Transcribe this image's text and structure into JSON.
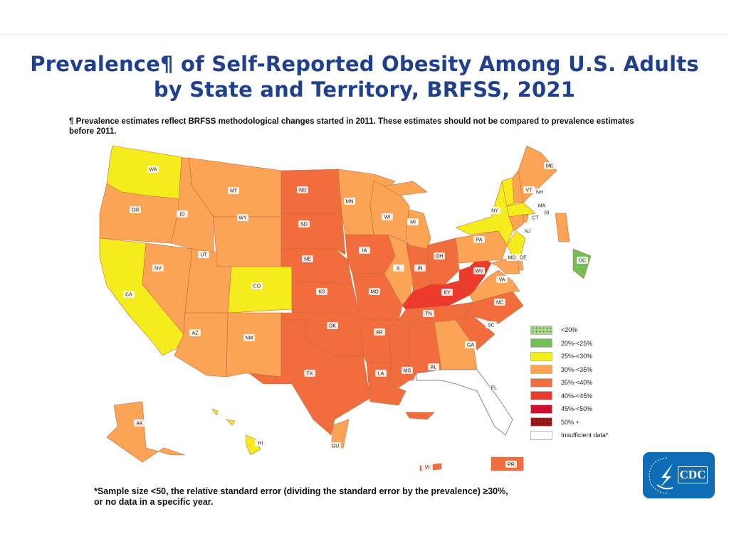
{
  "title_line1": "Prevalence¶ of Self-Reported Obesity Among U.S. Adults",
  "title_line2": "by State and Territory, BRFSS, 2021",
  "method_note": "¶ Prevalence estimates reflect BRFSS methodological changes started in 2011. These estimates should not be compared to prevalence estimates before 2011.",
  "footnote_line1": "*Sample size <50, the relative standard error (dividing the standard error by the prevalence) ≥30%,",
  "footnote_line2": "or no data in a specific year.",
  "logo_text": "CDC",
  "legend": [
    {
      "label": "<20%",
      "color": "#a8d88a",
      "pattern": "dots"
    },
    {
      "label": "20%-<25%",
      "color": "#72bf57"
    },
    {
      "label": "25%-<30%",
      "color": "#f5ec1e"
    },
    {
      "label": "30%-<35%",
      "color": "#fba456"
    },
    {
      "label": "35%-<40%",
      "color": "#f26d3d"
    },
    {
      "label": "40%-<45%",
      "color": "#ec3b2c"
    },
    {
      "label": "45%-<50%",
      "color": "#c8102e"
    },
    {
      "label": "50% +",
      "color": "#9e1b1b",
      "pattern": "dots"
    },
    {
      "label": "Insufficient data*",
      "color": "#ffffff"
    }
  ],
  "states": {
    "WA": "25%-<30%",
    "CA": "25%-<30%",
    "CO": "25%-<30%",
    "NY": "25%-<30%",
    "VT": "25%-<30%",
    "MA": "25%-<30%",
    "NJ": "25%-<30%",
    "HI": "25%-<30%",
    "OR": "30%-<35%",
    "ID": "30%-<35%",
    "MT": "30%-<35%",
    "WY": "30%-<35%",
    "NV": "30%-<35%",
    "UT": "30%-<35%",
    "AZ": "30%-<35%",
    "NM": "30%-<35%",
    "MN": "30%-<35%",
    "WI": "30%-<35%",
    "MI": "30%-<35%",
    "IL": "30%-<35%",
    "PA": "30%-<35%",
    "ME": "30%-<35%",
    "NH": "30%-<35%",
    "CT": "30%-<35%",
    "RI": "30%-<35%",
    "MD": "30%-<35%",
    "DE": "30%-<35%",
    "VA": "30%-<35%",
    "GA": "30%-<35%",
    "AK": "30%-<35%",
    "GU": "30%-<35%",
    "ND": "35%-<40%",
    "SD": "35%-<40%",
    "NE": "35%-<40%",
    "KS": "35%-<40%",
    "OK": "35%-<40%",
    "TX": "35%-<40%",
    "IA": "35%-<40%",
    "MO": "35%-<40%",
    "AR": "35%-<40%",
    "LA": "35%-<40%",
    "MS": "35%-<40%",
    "AL": "35%-<40%",
    "TN": "35%-<40%",
    "IN": "35%-<40%",
    "OH": "35%-<40%",
    "NC": "35%-<40%",
    "SC": "35%-<40%",
    "PR": "35%-<40%",
    "VI": "35%-<40%",
    "KY": "40%-<45%",
    "WV": "40%-<45%",
    "DC": "20%-<25%",
    "FL": "Insufficient data*"
  }
}
